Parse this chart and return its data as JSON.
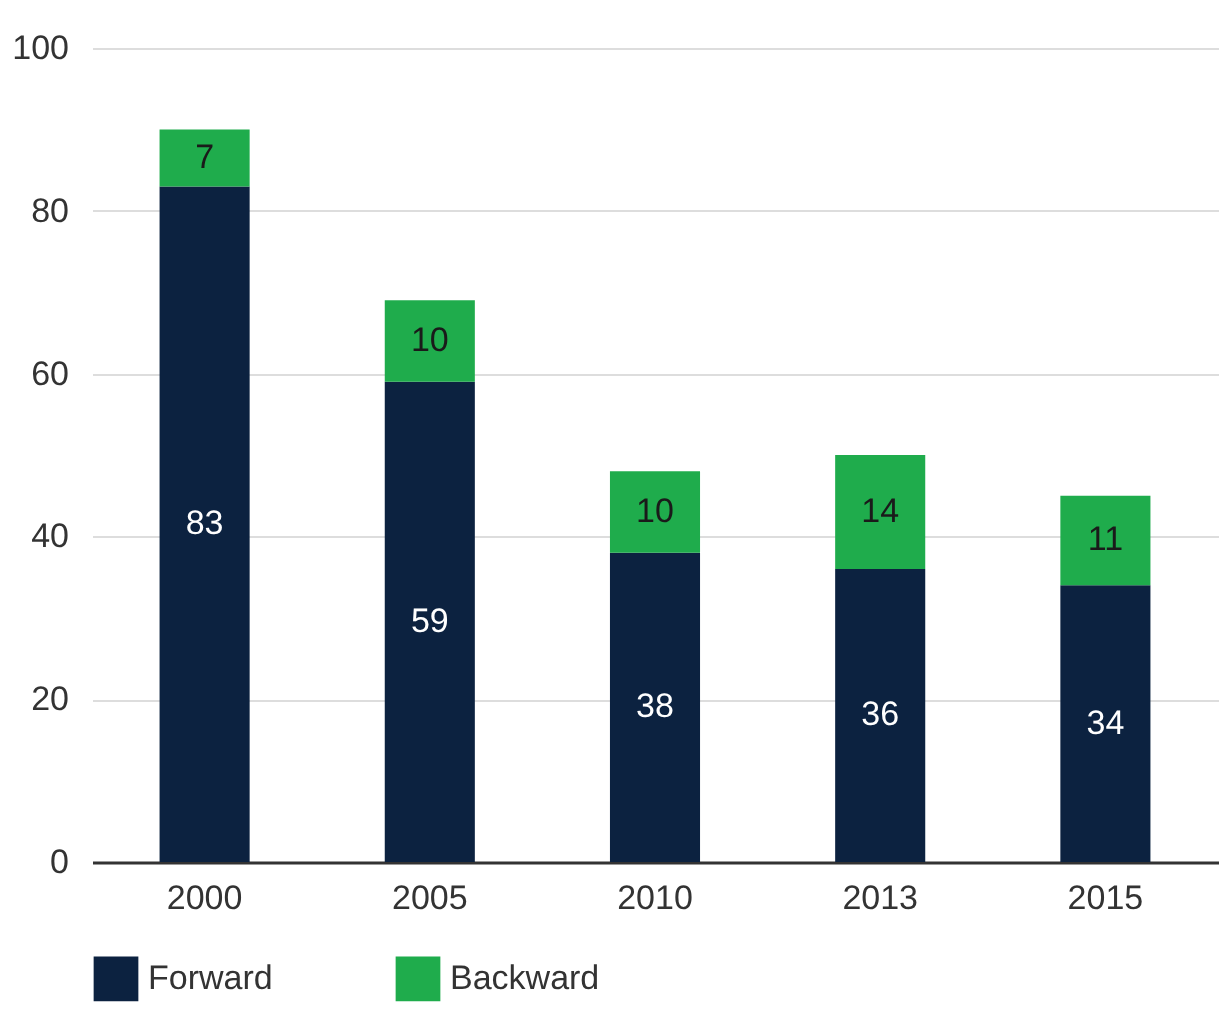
{
  "chart_data": {
    "type": "bar",
    "stacked": true,
    "categories": [
      "2000",
      "2005",
      "2010",
      "2013",
      "2015"
    ],
    "series": [
      {
        "name": "Forward",
        "color": "#0c2240",
        "values": [
          83,
          59,
          38,
          36,
          34
        ]
      },
      {
        "name": "Backward",
        "color": "#1fac4c",
        "values": [
          7,
          10,
          10,
          14,
          11
        ]
      }
    ],
    "ylim": [
      0,
      100
    ],
    "yticks": [
      0,
      20,
      40,
      60,
      80,
      100
    ],
    "grid": "y",
    "legend": "bottom left",
    "data_labels": true
  }
}
